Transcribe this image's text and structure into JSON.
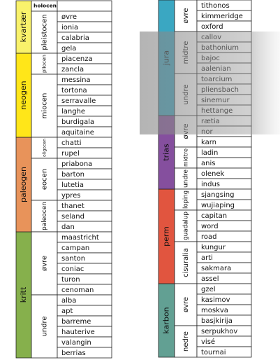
{
  "columns": [
    {
      "periods": [
        {
          "name": "kvartær",
          "color": "#f9f26b",
          "epochs": [
            {
              "name": "holocen",
              "stages": []
            },
            {
              "name": "pleistocen",
              "stages": [
                "øvre",
                "ionia",
                "calabria",
                "gela"
              ]
            }
          ]
        },
        {
          "name": "neogen",
          "color": "#ffe619",
          "epochs": [
            {
              "name": "pliocen",
              "stages": [
                "piacenza",
                "zancla"
              ]
            },
            {
              "name": "miocen",
              "stages": [
                "messina",
                "tortona",
                "serravalle",
                "langhe",
                "burdigala",
                "aquitaine"
              ]
            }
          ]
        },
        {
          "name": "paleogen",
          "color": "#e8935a",
          "epochs": [
            {
              "name": "oligocen",
              "stages": [
                "chatti",
                "rupel"
              ]
            },
            {
              "name": "eocen",
              "stages": [
                "priabona",
                "barton",
                "lutetia",
                "ypres"
              ]
            },
            {
              "name": "paleocen",
              "stages": [
                "thanet",
                "seland",
                "dan"
              ]
            }
          ]
        },
        {
          "name": "kritt",
          "color": "#86b04c",
          "epochs": [
            {
              "name": "øvre",
              "stages": [
                "maastricht",
                "campan",
                "santon",
                "coniac",
                "turon",
                "cenoman"
              ]
            },
            {
              "name": "undre",
              "stages": [
                "alba",
                "apt",
                "barreme",
                "hauterive",
                "valangin",
                "berrias"
              ]
            }
          ]
        }
      ]
    },
    {
      "periods": [
        {
          "name": "jura",
          "color": "#3aa7c2",
          "epochs": [
            {
              "name": "øvre",
              "stages": [
                "tithonos",
                "kimmeridge",
                "oxford"
              ]
            },
            {
              "name": "midtre",
              "stages": [
                "callov",
                "bathonium",
                "bajoc",
                "aalenian"
              ]
            },
            {
              "name": "undre",
              "stages": [
                "toarcium",
                "pliensbach",
                "sinemur",
                "hettange"
              ]
            }
          ]
        },
        {
          "name": "trias",
          "color": "#854f9e",
          "epochs": [
            {
              "name": "øvre",
              "stages": [
                "rætia",
                "nor",
                "karn"
              ]
            },
            {
              "name": "midtre",
              "stages": [
                "ladin",
                "anis"
              ]
            },
            {
              "name": "undre",
              "stages": [
                "olenek",
                "indus"
              ]
            }
          ]
        },
        {
          "name": "perm",
          "color": "#e1553f",
          "epochs": [
            {
              "name": "loping",
              "stages": [
                "sjangsing",
                "wujiaping"
              ]
            },
            {
              "name": "guadalup",
              "stages": [
                "capitan",
                "word",
                "road"
              ]
            },
            {
              "name": "cisuralia",
              "stages": [
                "kungur",
                "arti",
                "sakmara",
                "assel"
              ]
            }
          ]
        },
        {
          "name": "karbon",
          "color": "#62a093",
          "epochs": [
            {
              "name": "øvre",
              "stages": [
                "gzel",
                "kasimov",
                "moskva",
                "basjkirija"
              ]
            },
            {
              "name": "nedre",
              "stages": [
                "serpukhov",
                "visé",
                "tournai"
              ]
            }
          ]
        }
      ]
    }
  ]
}
